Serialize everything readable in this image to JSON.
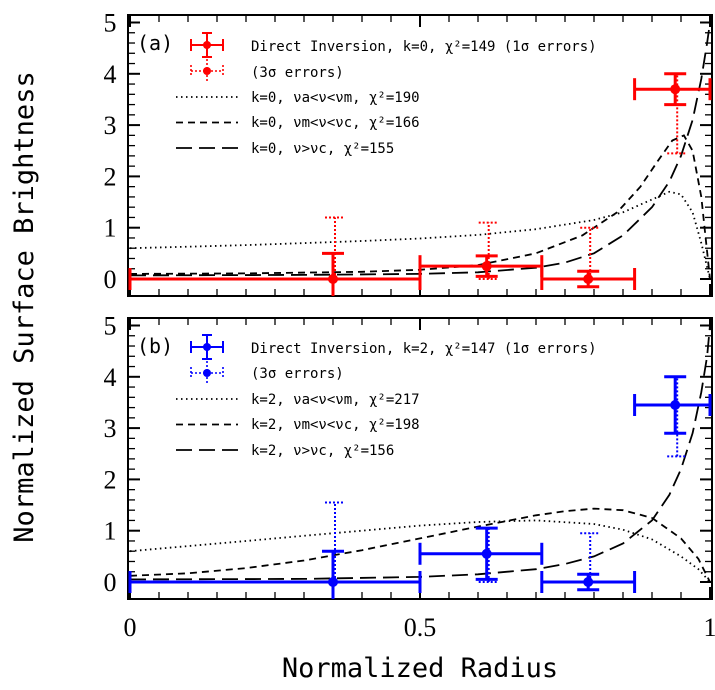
{
  "chart_data": {
    "type": "multi-panel line + errorbar",
    "xlabel": "Normalized Radius",
    "ylabel": "Normalized Surface Brightness",
    "xlim": [
      0,
      1
    ],
    "ylim": [
      -0.3,
      5
    ],
    "xticks": [
      "0",
      "0.5",
      "1"
    ],
    "xtick_values": [
      0,
      0.5,
      1
    ],
    "yticks": [
      "0",
      "1",
      "2",
      "3",
      "4",
      "5"
    ],
    "ytick_values": [
      0,
      1,
      2,
      3,
      4,
      5
    ],
    "panels": [
      {
        "id": "a",
        "label": "(a)",
        "color": "#ff0000",
        "legend": {
          "direct": "Direct Inversion, k=0, χ²=149 (1σ errors)",
          "direct3": "(3σ errors)",
          "curve1": "k=0, νa<ν<νm, χ²=190",
          "curve2": "k=0, νm<ν<νc, χ²=166",
          "curve3": "k=0, ν>νc, χ²=155"
        },
        "points": [
          {
            "x": 0.35,
            "xlo": 0.0,
            "xhi": 0.5,
            "y": 0.0,
            "e1": 0.5,
            "e3lo": 0.0,
            "e3hi": 1.2
          },
          {
            "x": 0.615,
            "xlo": 0.5,
            "xhi": 0.71,
            "y": 0.25,
            "e1": 0.2,
            "e3lo": 0.25,
            "e3hi": 0.85
          },
          {
            "x": 0.79,
            "xlo": 0.71,
            "xhi": 0.87,
            "y": 0.0,
            "e1": 0.15,
            "e3lo": 0.0,
            "e3hi": 1.0
          },
          {
            "x": 0.94,
            "xlo": 0.87,
            "xhi": 1.0,
            "y": 3.7,
            "e1": 0.3,
            "e3lo": 1.25,
            "e3hi": 0.3
          }
        ],
        "curves": [
          {
            "style": "dotted",
            "x": [
              0.0,
              0.1,
              0.2,
              0.3,
              0.4,
              0.5,
              0.6,
              0.7,
              0.8,
              0.85,
              0.9,
              0.93,
              0.95,
              0.97,
              0.985,
              1.0
            ],
            "y": [
              0.6,
              0.63,
              0.66,
              0.7,
              0.74,
              0.79,
              0.86,
              0.97,
              1.15,
              1.3,
              1.55,
              1.7,
              1.65,
              1.3,
              0.7,
              0.0
            ]
          },
          {
            "style": "dashed",
            "x": [
              0.0,
              0.2,
              0.4,
              0.5,
              0.6,
              0.7,
              0.78,
              0.84,
              0.88,
              0.91,
              0.935,
              0.955,
              0.97,
              0.985,
              1.0
            ],
            "y": [
              0.1,
              0.11,
              0.14,
              0.18,
              0.27,
              0.5,
              0.85,
              1.3,
              1.8,
              2.3,
              2.7,
              2.8,
              2.5,
              1.6,
              0.0
            ]
          },
          {
            "style": "longdash",
            "x": [
              0.0,
              0.3,
              0.5,
              0.6,
              0.7,
              0.75,
              0.8,
              0.85,
              0.9,
              0.93,
              0.95,
              0.97,
              0.985,
              0.995,
              1.0
            ],
            "y": [
              0.07,
              0.08,
              0.1,
              0.13,
              0.22,
              0.32,
              0.5,
              0.85,
              1.4,
              1.9,
              2.4,
              3.1,
              3.9,
              4.6,
              5.0
            ]
          }
        ]
      },
      {
        "id": "b",
        "label": "(b)",
        "color": "#0000ff",
        "legend": {
          "direct": "Direct Inversion, k=2, χ²=147 (1σ errors)",
          "direct3": "(3σ errors)",
          "curve1": "k=2, νa<ν<νm, χ²=217",
          "curve2": "k=2, νm<ν<νc, χ²=198",
          "curve3": "k=2, ν>νc, χ²=156"
        },
        "points": [
          {
            "x": 0.35,
            "xlo": 0.0,
            "xhi": 0.5,
            "y": 0.0,
            "e1": 0.6,
            "e3lo": 0.0,
            "e3hi": 1.55
          },
          {
            "x": 0.615,
            "xlo": 0.5,
            "xhi": 0.71,
            "y": 0.55,
            "e1": 0.5,
            "e3lo": 0.55,
            "e3hi": 0.5
          },
          {
            "x": 0.79,
            "xlo": 0.71,
            "xhi": 0.87,
            "y": 0.0,
            "e1": 0.15,
            "e3lo": 0.0,
            "e3hi": 0.95
          },
          {
            "x": 0.94,
            "xlo": 0.87,
            "xhi": 1.0,
            "y": 3.45,
            "e1": 0.55,
            "e3lo": 1.0,
            "e3hi": 0.55
          }
        ],
        "curves": [
          {
            "style": "dotted",
            "x": [
              0.0,
              0.1,
              0.2,
              0.3,
              0.4,
              0.5,
              0.6,
              0.7,
              0.8,
              0.85,
              0.9,
              0.95,
              0.98,
              1.0
            ],
            "y": [
              0.6,
              0.7,
              0.8,
              0.9,
              1.0,
              1.1,
              1.17,
              1.2,
              1.13,
              1.02,
              0.83,
              0.5,
              0.25,
              0.0
            ]
          },
          {
            "style": "dashed",
            "x": [
              0.0,
              0.1,
              0.2,
              0.3,
              0.4,
              0.5,
              0.6,
              0.7,
              0.75,
              0.8,
              0.85,
              0.9,
              0.95,
              0.98,
              1.0
            ],
            "y": [
              0.12,
              0.17,
              0.27,
              0.42,
              0.62,
              0.85,
              1.08,
              1.3,
              1.38,
              1.43,
              1.4,
              1.25,
              0.85,
              0.45,
              0.0
            ]
          },
          {
            "style": "longdash",
            "x": [
              0.0,
              0.3,
              0.5,
              0.6,
              0.7,
              0.75,
              0.8,
              0.85,
              0.9,
              0.93,
              0.95,
              0.97,
              0.985,
              0.995,
              1.0
            ],
            "y": [
              0.05,
              0.06,
              0.1,
              0.15,
              0.25,
              0.35,
              0.5,
              0.75,
              1.2,
              1.7,
              2.2,
              2.9,
              3.7,
              4.4,
              5.0
            ]
          }
        ]
      }
    ]
  }
}
